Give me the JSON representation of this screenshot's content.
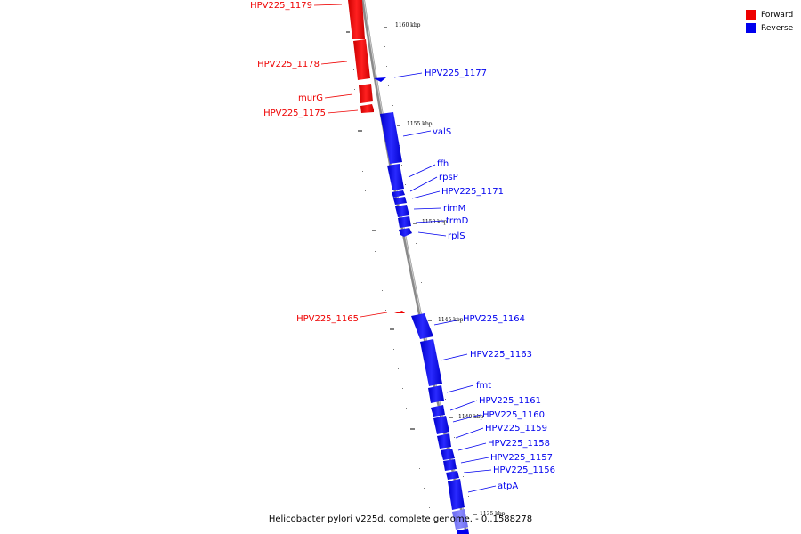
{
  "legend": {
    "forward_label": "Forward",
    "reverse_label": "Reverse",
    "forward_color": "#ee0000",
    "reverse_color": "#0000ee"
  },
  "caption": "Helicobacter pylori v225d, complete genome. - 0..1588278",
  "genes": [
    {
      "name": "HPV225_1179",
      "strand": "forward"
    },
    {
      "name": "HPV225_1178",
      "strand": "forward"
    },
    {
      "name": "murG",
      "strand": "forward"
    },
    {
      "name": "HPV225_1175",
      "strand": "forward"
    },
    {
      "name": "HPV225_1177",
      "strand": "reverse"
    },
    {
      "name": "valS",
      "strand": "reverse"
    },
    {
      "name": "ffh",
      "strand": "reverse"
    },
    {
      "name": "rpsP",
      "strand": "reverse"
    },
    {
      "name": "HPV225_1171",
      "strand": "reverse"
    },
    {
      "name": "rimM",
      "strand": "reverse"
    },
    {
      "name": "trmD",
      "strand": "reverse"
    },
    {
      "name": "rplS",
      "strand": "reverse"
    },
    {
      "name": "HPV225_1165",
      "strand": "forward"
    },
    {
      "name": "HPV225_1164",
      "strand": "reverse"
    },
    {
      "name": "HPV225_1163",
      "strand": "reverse"
    },
    {
      "name": "fmt",
      "strand": "reverse"
    },
    {
      "name": "HPV225_1161",
      "strand": "reverse"
    },
    {
      "name": "HPV225_1160",
      "strand": "reverse"
    },
    {
      "name": "HPV225_1159",
      "strand": "reverse"
    },
    {
      "name": "HPV225_1158",
      "strand": "reverse"
    },
    {
      "name": "HPV225_1157",
      "strand": "reverse"
    },
    {
      "name": "HPV225_1156",
      "strand": "reverse"
    },
    {
      "name": "atpA",
      "strand": "reverse"
    }
  ],
  "scale_labels": [
    "1160 kbp",
    "1155 kbp",
    "1150 kbp",
    "1145 kbp",
    "1140 kbp",
    "1135 kbp"
  ]
}
